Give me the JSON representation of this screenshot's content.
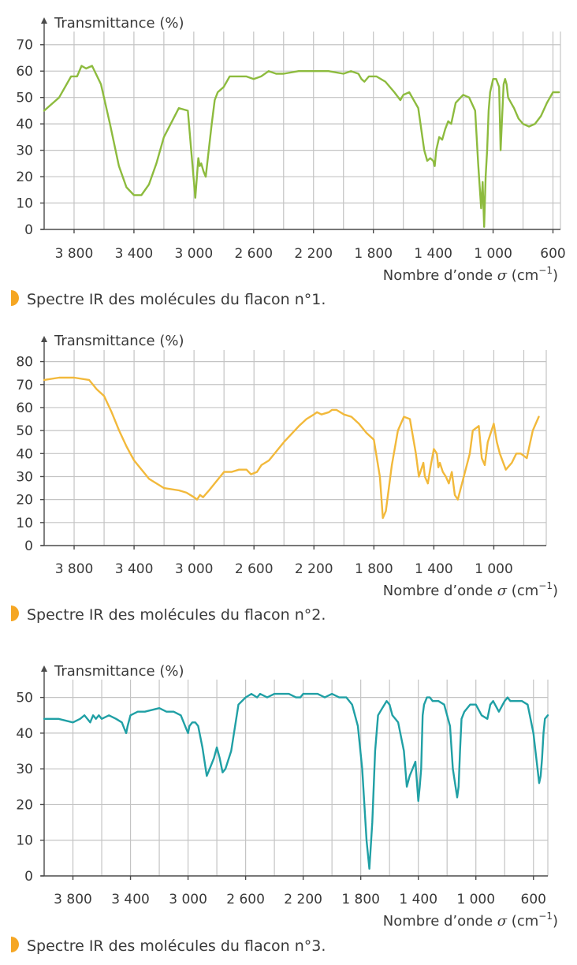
{
  "axis_text": {
    "y_title": "Transmittance (%)",
    "x_title_prefix": "Nombre d’onde ",
    "x_title_sigma": "σ",
    "x_title_unit": " (cm",
    "x_title_exp": "−1",
    "x_title_close": ")"
  },
  "chart_data": [
    {
      "type": "line",
      "title": "",
      "caption": "Spectre IR des molécules du flacon n°1.",
      "xlabel": "Nombre d’onde σ (cm−1)",
      "ylabel": "Transmittance (%)",
      "xlim": [
        4000,
        550
      ],
      "ylim": [
        0,
        75
      ],
      "x_ticks": [
        3800,
        3400,
        3000,
        2600,
        2200,
        1800,
        1400,
        1000,
        600
      ],
      "x_tick_labels": [
        "3 800",
        "3 400",
        "3 000",
        "2 600",
        "2 200",
        "1 800",
        "1 400",
        "1 000",
        "600"
      ],
      "y_ticks": [
        0,
        10,
        20,
        30,
        40,
        50,
        60,
        70
      ],
      "y_tick_labels": [
        "0",
        "10",
        "20",
        "30",
        "40",
        "50",
        "60",
        "70"
      ],
      "grid": true,
      "color": "#8dbb3e",
      "series": [
        {
          "name": "flacon n°1",
          "x": [
            4000,
            3900,
            3820,
            3780,
            3750,
            3720,
            3680,
            3620,
            3560,
            3500,
            3450,
            3400,
            3350,
            3300,
            3250,
            3200,
            3100,
            3040,
            3010,
            2990,
            2970,
            2960,
            2950,
            2935,
            2920,
            2900,
            2880,
            2860,
            2840,
            2800,
            2760,
            2700,
            2650,
            2600,
            2550,
            2500,
            2450,
            2400,
            2300,
            2200,
            2100,
            2000,
            1950,
            1900,
            1880,
            1860,
            1830,
            1780,
            1720,
            1660,
            1620,
            1600,
            1560,
            1500,
            1460,
            1440,
            1420,
            1400,
            1390,
            1380,
            1360,
            1340,
            1320,
            1300,
            1280,
            1250,
            1200,
            1160,
            1120,
            1100,
            1080,
            1070,
            1060,
            1050,
            1040,
            1030,
            1020,
            1000,
            980,
            960,
            950,
            930,
            920,
            910,
            900,
            880,
            860,
            830,
            800,
            760,
            720,
            680,
            640,
            600,
            560
          ],
          "values": [
            45,
            50,
            58,
            58,
            62,
            61,
            62,
            55,
            40,
            24,
            16,
            13,
            13,
            17,
            25,
            35,
            46,
            45,
            25,
            12,
            27,
            24,
            25,
            22,
            20,
            30,
            40,
            49,
            52,
            54,
            58,
            58,
            58,
            57,
            58,
            60,
            59,
            59,
            60,
            60,
            60,
            59,
            60,
            59,
            57,
            56,
            58,
            58,
            56,
            52,
            49,
            51,
            52,
            46,
            30,
            26,
            27,
            26,
            24,
            30,
            35,
            34,
            38,
            41,
            40,
            48,
            51,
            50,
            45,
            25,
            8,
            18,
            1,
            20,
            30,
            45,
            52,
            57,
            57,
            54,
            30,
            55,
            57,
            55,
            50,
            48,
            46,
            42,
            40,
            39,
            40,
            43,
            48,
            52,
            52
          ]
        }
      ]
    },
    {
      "type": "line",
      "title": "",
      "caption": "Spectre IR des molécules du flacon n°2.",
      "xlabel": "Nombre d’onde σ (cm−1)",
      "ylabel": "Transmittance (%)",
      "xlim": [
        4000,
        650
      ],
      "ylim": [
        0,
        85
      ],
      "x_ticks": [
        3800,
        3400,
        3000,
        2600,
        2200,
        1800,
        1400,
        1000
      ],
      "x_tick_labels": [
        "3 800",
        "3 400",
        "3 000",
        "2 600",
        "2 200",
        "1 800",
        "1 400",
        "1 000"
      ],
      "y_ticks": [
        0,
        10,
        20,
        30,
        40,
        50,
        60,
        70,
        80
      ],
      "y_tick_labels": [
        "0",
        "10",
        "20",
        "30",
        "40",
        "50",
        "60",
        "70",
        "80"
      ],
      "grid": true,
      "color": "#f2b93b",
      "series": [
        {
          "name": "flacon n°2",
          "x": [
            4000,
            3900,
            3800,
            3700,
            3650,
            3600,
            3550,
            3500,
            3450,
            3400,
            3300,
            3200,
            3100,
            3050,
            3000,
            2980,
            2960,
            2940,
            2900,
            2850,
            2800,
            2750,
            2700,
            2650,
            2620,
            2580,
            2550,
            2500,
            2400,
            2300,
            2250,
            2200,
            2180,
            2150,
            2100,
            2080,
            2050,
            2000,
            1950,
            1900,
            1850,
            1800,
            1760,
            1740,
            1720,
            1680,
            1640,
            1600,
            1560,
            1520,
            1500,
            1470,
            1460,
            1440,
            1420,
            1400,
            1380,
            1370,
            1360,
            1340,
            1320,
            1300,
            1280,
            1260,
            1240,
            1200,
            1160,
            1140,
            1100,
            1080,
            1060,
            1040,
            1000,
            980,
            960,
            920,
            880,
            850,
            820,
            780,
            740,
            700
          ],
          "values": [
            72,
            73,
            73,
            72,
            68,
            65,
            58,
            50,
            43,
            37,
            29,
            25,
            24,
            23,
            21,
            20,
            22,
            21,
            24,
            28,
            32,
            32,
            33,
            33,
            31,
            32,
            35,
            37,
            45,
            52,
            55,
            57,
            58,
            57,
            58,
            59,
            59,
            57,
            56,
            53,
            49,
            46,
            30,
            12,
            15,
            35,
            50,
            56,
            55,
            40,
            30,
            36,
            30,
            27,
            35,
            42,
            40,
            34,
            36,
            32,
            30,
            27,
            32,
            22,
            20,
            30,
            40,
            50,
            52,
            38,
            35,
            45,
            53,
            45,
            40,
            33,
            36,
            40,
            40,
            38,
            50,
            56
          ]
        }
      ]
    },
    {
      "type": "line",
      "title": "",
      "caption": "Spectre IR des molécules du flacon n°3.",
      "xlabel": "Nombre d’onde σ (cm−1)",
      "ylabel": "Transmittance (%)",
      "xlim": [
        4000,
        500
      ],
      "ylim": [
        0,
        55
      ],
      "x_ticks": [
        3800,
        3400,
        3000,
        2600,
        2200,
        1800,
        1400,
        1000,
        600
      ],
      "x_tick_labels": [
        "3 800",
        "3 400",
        "3 000",
        "2 600",
        "2 200",
        "1 800",
        "1 400",
        "1 000",
        "600"
      ],
      "y_ticks": [
        0,
        10,
        20,
        30,
        40,
        50
      ],
      "y_tick_labels": [
        "0",
        "10",
        "20",
        "30",
        "40",
        "50"
      ],
      "grid": true,
      "color": "#20a0a5",
      "series": [
        {
          "name": "flacon n°3",
          "x": [
            4000,
            3900,
            3800,
            3750,
            3720,
            3700,
            3680,
            3660,
            3640,
            3620,
            3600,
            3550,
            3500,
            3460,
            3440,
            3430,
            3420,
            3400,
            3350,
            3300,
            3200,
            3150,
            3100,
            3050,
            3010,
            3000,
            2990,
            2970,
            2950,
            2930,
            2900,
            2870,
            2850,
            2820,
            2800,
            2780,
            2760,
            2740,
            2700,
            2650,
            2600,
            2560,
            2520,
            2500,
            2450,
            2400,
            2300,
            2250,
            2220,
            2200,
            2100,
            2050,
            2000,
            1950,
            1900,
            1860,
            1820,
            1790,
            1760,
            1740,
            1720,
            1700,
            1680,
            1650,
            1620,
            1600,
            1580,
            1560,
            1540,
            1500,
            1480,
            1460,
            1440,
            1420,
            1400,
            1390,
            1380,
            1370,
            1360,
            1340,
            1320,
            1300,
            1260,
            1220,
            1180,
            1160,
            1130,
            1120,
            1110,
            1100,
            1080,
            1040,
            1000,
            960,
            920,
            900,
            880,
            840,
            800,
            780,
            760,
            720,
            680,
            640,
            600,
            560,
            550,
            540,
            530,
            520,
            500
          ],
          "values": [
            44,
            44,
            43,
            44,
            45,
            44,
            43,
            45,
            44,
            45,
            44,
            45,
            44,
            43,
            41,
            40,
            42,
            45,
            46,
            46,
            47,
            46,
            46,
            45,
            41,
            40,
            42,
            43,
            43,
            42,
            36,
            28,
            30,
            33,
            36,
            33,
            29,
            30,
            35,
            48,
            50,
            51,
            50,
            51,
            50,
            51,
            51,
            50,
            50,
            51,
            51,
            50,
            51,
            50,
            50,
            48,
            42,
            30,
            10,
            2,
            15,
            35,
            45,
            47,
            49,
            48,
            45,
            44,
            43,
            35,
            25,
            28,
            30,
            32,
            21,
            25,
            30,
            45,
            48,
            50,
            50,
            49,
            49,
            48,
            42,
            30,
            22,
            25,
            35,
            44,
            46,
            48,
            48,
            45,
            44,
            48,
            49,
            46,
            49,
            50,
            49,
            49,
            49,
            48,
            40,
            26,
            28,
            33,
            40,
            44,
            45
          ]
        }
      ]
    }
  ]
}
